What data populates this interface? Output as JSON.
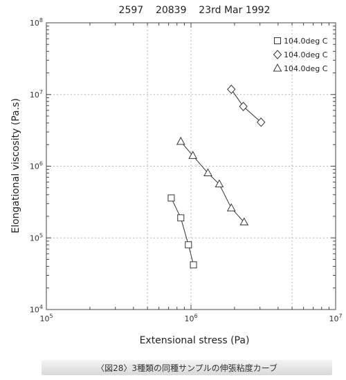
{
  "chart_data": {
    "type": "scatter",
    "title": "2597    20839    23rd Mar 1992",
    "xlabel": "Extensional stress (Pa)",
    "ylabel": "Elongational viscosity (Pa.s)",
    "x_scale": "log",
    "y_scale": "log",
    "xlim": [
      100000,
      10000000
    ],
    "ylim": [
      10000,
      100000000
    ],
    "x_ticks": [
      {
        "value": 100000,
        "base": "10",
        "exp": "5"
      },
      {
        "value": 1000000,
        "base": "10",
        "exp": "6"
      },
      {
        "value": 10000000,
        "base": "10",
        "exp": "7"
      }
    ],
    "y_ticks": [
      {
        "value": 10000,
        "base": "10",
        "exp": "4"
      },
      {
        "value": 100000,
        "base": "10",
        "exp": "5"
      },
      {
        "value": 1000000,
        "base": "10",
        "exp": "6"
      },
      {
        "value": 10000000,
        "base": "10",
        "exp": "7"
      },
      {
        "value": 100000000,
        "base": "10",
        "exp": "8"
      }
    ],
    "grid": true,
    "legend_position": "top-right",
    "series": [
      {
        "name": "104.0deg C",
        "marker": "square",
        "points": [
          [
            730000,
            360000
          ],
          [
            850000,
            190000
          ],
          [
            960000,
            80000
          ],
          [
            1040000,
            42000
          ]
        ]
      },
      {
        "name": "104.0deg C",
        "marker": "diamond",
        "points": [
          [
            1900000,
            11800000
          ],
          [
            2300000,
            6800000
          ],
          [
            3050000,
            4100000
          ]
        ]
      },
      {
        "name": "104.0deg C",
        "marker": "triangle",
        "points": [
          [
            850000,
            2200000
          ],
          [
            1030000,
            1400000
          ],
          [
            1310000,
            800000
          ],
          [
            1570000,
            560000
          ],
          [
            1900000,
            260000
          ],
          [
            2330000,
            165000
          ]
        ]
      }
    ]
  },
  "caption": "〈図28〉3種類の同種サンプルの伸張粘度カーブ"
}
